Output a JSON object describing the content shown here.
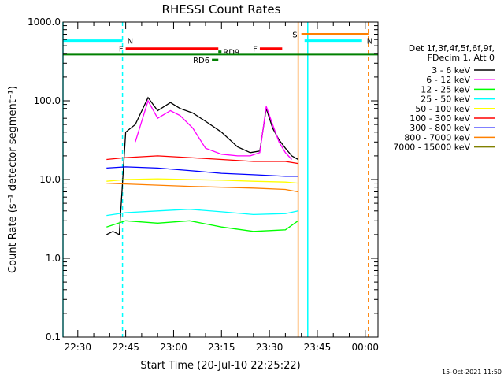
{
  "chart_data": {
    "type": "line",
    "title": "RHESSI Count Rates",
    "xlabel": "Start Time (20-Jul-10 22:25:22)",
    "ylabel": "Count Rate (s⁻¹ detector segment⁻¹)",
    "y_scale": "log",
    "ylim": [
      0.1,
      1000
    ],
    "y_ticks": [
      "0.1",
      "1.0",
      "10.0",
      "100.0",
      "1000.0"
    ],
    "x_ticks": [
      "22:30",
      "22:45",
      "23:00",
      "23:15",
      "23:30",
      "23:45",
      "00:00"
    ],
    "xlim": [
      "22:25:22",
      "00:04:00"
    ],
    "legend": {
      "header": [
        "Det 1f,3f,4f,5f,6f,9f,",
        "FDecim 1, Att 0"
      ],
      "placement": "right"
    },
    "series": [
      {
        "name": "3 - 6 keV",
        "color": "#000000",
        "x": [
          "22:39",
          "22:41",
          "22:43",
          "22:45",
          "22:48",
          "22:52",
          "22:55",
          "22:59",
          "23:02",
          "23:06",
          "23:10",
          "23:15",
          "23:20",
          "23:24",
          "23:27",
          "23:29",
          "23:31",
          "23:33",
          "23:35",
          "23:37",
          "23:39"
        ],
        "values": [
          2.0,
          2.2,
          2.0,
          40,
          50,
          110,
          75,
          95,
          80,
          70,
          55,
          40,
          26,
          22,
          23,
          80,
          45,
          32,
          25,
          20,
          18
        ]
      },
      {
        "name": "6 - 12 keV",
        "color": "#ff00ff",
        "x": [
          "22:48",
          "22:52",
          "22:55",
          "22:59",
          "23:02",
          "23:06",
          "23:10",
          "23:15",
          "23:20",
          "23:24",
          "23:27",
          "23:29",
          "23:31",
          "23:33",
          "23:35",
          "23:37"
        ],
        "values": [
          30,
          100,
          60,
          75,
          65,
          45,
          25,
          21,
          20,
          20,
          22,
          85,
          50,
          30,
          22,
          18
        ]
      },
      {
        "name": "12 - 25 keV",
        "color": "#00ff00",
        "x": [
          "22:39",
          "22:45",
          "22:55",
          "23:05",
          "23:15",
          "23:25",
          "23:35",
          "23:39"
        ],
        "values": [
          2.5,
          3.0,
          2.8,
          3.0,
          2.5,
          2.2,
          2.3,
          3.0
        ]
      },
      {
        "name": "25 - 50 keV",
        "color": "#00ffff",
        "x": [
          "22:39",
          "22:45",
          "22:55",
          "23:05",
          "23:15",
          "23:25",
          "23:35",
          "23:39"
        ],
        "values": [
          3.5,
          3.8,
          4.0,
          4.2,
          3.9,
          3.6,
          3.7,
          4.0
        ]
      },
      {
        "name": "50 - 100 keV",
        "color": "#ffff00",
        "x": [
          "22:39",
          "22:45",
          "22:55",
          "23:05",
          "23:15",
          "23:25",
          "23:35",
          "23:39"
        ],
        "values": [
          9.5,
          10.0,
          10.2,
          10.0,
          9.8,
          9.5,
          9.3,
          9.0
        ]
      },
      {
        "name": "100 - 300 keV",
        "color": "#ff0000",
        "x": [
          "22:39",
          "22:45",
          "22:55",
          "23:05",
          "23:15",
          "23:25",
          "23:35",
          "23:39"
        ],
        "values": [
          18,
          19,
          20,
          19,
          18,
          17,
          17,
          16
        ]
      },
      {
        "name": "300 - 800 keV",
        "color": "#0000ff",
        "x": [
          "22:39",
          "22:45",
          "22:55",
          "23:05",
          "23:15",
          "23:25",
          "23:35",
          "23:39"
        ],
        "values": [
          14,
          14.5,
          14,
          13,
          12,
          11.5,
          11,
          11
        ]
      },
      {
        "name": "800 - 7000 keV",
        "color": "#ff8000",
        "x": [
          "22:39",
          "22:45",
          "22:55",
          "23:05",
          "23:15",
          "23:25",
          "23:35",
          "23:39"
        ],
        "values": [
          9.0,
          8.8,
          8.5,
          8.2,
          8.0,
          7.8,
          7.5,
          7.0
        ]
      },
      {
        "name": "7000 - 15000 keV",
        "color": "#808000",
        "x": [],
        "values": []
      }
    ],
    "flag_bars": [
      {
        "label": "N",
        "color": "#00ffff",
        "start": "22:25:22",
        "end": "22:44",
        "y": 580
      },
      {
        "label": "N",
        "color": "#00ffff",
        "start": "23:41",
        "end": "23:59",
        "y": 580
      },
      {
        "label": "F",
        "color": "#ff0000",
        "start": "22:45",
        "end": "23:14",
        "y": 460
      },
      {
        "label": "F",
        "color": "#ff0000",
        "start": "23:27",
        "end": "23:34",
        "y": 460
      },
      {
        "label": "S",
        "color": "#ff8000",
        "start": "23:40",
        "end": "00:01",
        "y": 700
      },
      {
        "label": "RD9",
        "color": "#008000",
        "start": "23:14",
        "end": "23:15",
        "y": 420
      },
      {
        "label": "RD6",
        "color": "#008000",
        "start": "23:12",
        "end": "23:14",
        "y": 330
      },
      {
        "label": "",
        "color": "#008000",
        "start": "22:25:22",
        "end": "00:04:00",
        "y": 390
      }
    ],
    "vlines": [
      {
        "x": "22:25:22",
        "color": "#00ffff",
        "style": "solid"
      },
      {
        "x": "22:44",
        "color": "#00ffff",
        "style": "dashed"
      },
      {
        "x": "23:39",
        "color": "#ff8000",
        "style": "solid"
      },
      {
        "x": "23:42",
        "color": "#00ffff",
        "style": "solid"
      },
      {
        "x": "00:01",
        "color": "#ff8000",
        "style": "dashed"
      }
    ]
  },
  "footer": {
    "timestamp": "15-Oct-2021 11:50"
  }
}
